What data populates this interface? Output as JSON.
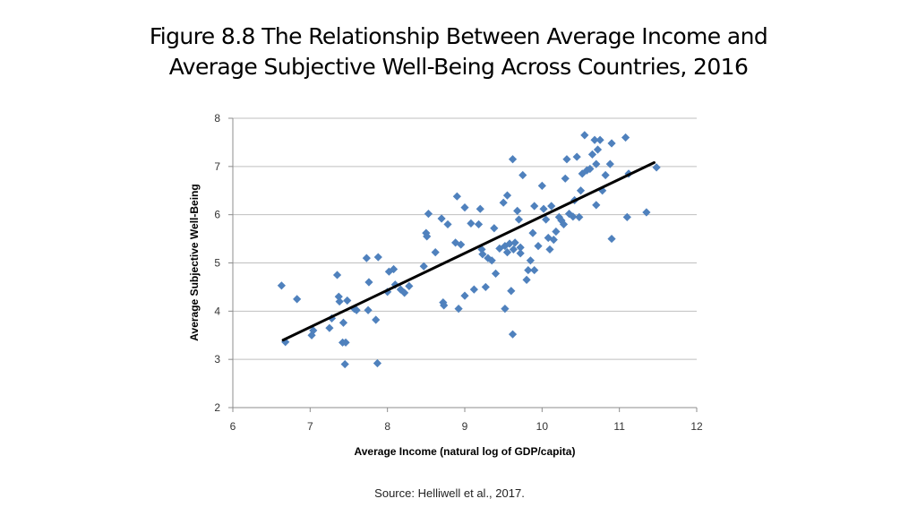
{
  "slide": {
    "title_line1": "Figure 8.8 The Relationship Between Average Income and",
    "title_line2": "Average Subjective Well-Being Across Countries, 2016",
    "source": "Source: Helliwell et al., 2017."
  },
  "chart_data": {
    "type": "scatter",
    "title": "",
    "xlabel": "Average Income (natural log of GDP/capita)",
    "ylabel": "Average Subjective Well-Being",
    "xlim": [
      6,
      12
    ],
    "ylim": [
      2,
      8
    ],
    "xticks": [
      6,
      7,
      8,
      9,
      10,
      11,
      12
    ],
    "yticks": [
      2,
      3,
      4,
      5,
      6,
      7,
      8
    ],
    "grid": "horizontal",
    "legend": "none",
    "marker": "diamond",
    "colors": {
      "points": "#4f81bd",
      "trendline": "#000000",
      "gridline": "#bfbfbf",
      "axis": "#8c8c8c"
    },
    "series": [
      {
        "points": [
          [
            6.63,
            4.53
          ],
          [
            6.68,
            3.36
          ],
          [
            6.83,
            4.25
          ],
          [
            7.02,
            3.5
          ],
          [
            7.04,
            3.6
          ],
          [
            7.25,
            3.65
          ],
          [
            7.28,
            3.85
          ],
          [
            7.35,
            4.75
          ],
          [
            7.37,
            4.3
          ],
          [
            7.38,
            4.2
          ],
          [
            7.42,
            3.35
          ],
          [
            7.43,
            3.76
          ],
          [
            7.45,
            2.9
          ],
          [
            7.46,
            3.35
          ],
          [
            7.48,
            4.22
          ],
          [
            7.57,
            4.05
          ],
          [
            7.6,
            4.02
          ],
          [
            7.73,
            5.1
          ],
          [
            7.76,
            4.6
          ],
          [
            7.75,
            4.02
          ],
          [
            7.85,
            3.82
          ],
          [
            7.87,
            2.92
          ],
          [
            7.88,
            5.12
          ],
          [
            8.0,
            4.4
          ],
          [
            8.02,
            4.82
          ],
          [
            8.08,
            4.87
          ],
          [
            8.1,
            4.55
          ],
          [
            8.17,
            4.45
          ],
          [
            8.22,
            4.38
          ],
          [
            8.28,
            4.52
          ],
          [
            8.47,
            4.93
          ],
          [
            8.5,
            5.62
          ],
          [
            8.51,
            5.55
          ],
          [
            8.53,
            6.02
          ],
          [
            8.62,
            5.22
          ],
          [
            8.7,
            5.92
          ],
          [
            8.72,
            4.18
          ],
          [
            8.73,
            4.12
          ],
          [
            8.78,
            5.8
          ],
          [
            8.88,
            5.42
          ],
          [
            8.9,
            6.38
          ],
          [
            8.92,
            4.05
          ],
          [
            8.95,
            5.38
          ],
          [
            9.0,
            6.15
          ],
          [
            9.0,
            4.32
          ],
          [
            9.08,
            5.82
          ],
          [
            9.12,
            4.45
          ],
          [
            9.18,
            5.8
          ],
          [
            9.2,
            6.12
          ],
          [
            9.22,
            5.28
          ],
          [
            9.23,
            5.18
          ],
          [
            9.27,
            4.5
          ],
          [
            9.3,
            5.1
          ],
          [
            9.35,
            5.05
          ],
          [
            9.38,
            5.72
          ],
          [
            9.4,
            4.78
          ],
          [
            9.45,
            5.3
          ],
          [
            9.5,
            6.25
          ],
          [
            9.52,
            5.35
          ],
          [
            9.52,
            4.05
          ],
          [
            9.55,
            6.4
          ],
          [
            9.55,
            5.22
          ],
          [
            9.58,
            5.4
          ],
          [
            9.6,
            4.42
          ],
          [
            9.62,
            7.15
          ],
          [
            9.62,
            3.52
          ],
          [
            9.63,
            5.28
          ],
          [
            9.65,
            5.42
          ],
          [
            9.68,
            6.08
          ],
          [
            9.7,
            5.9
          ],
          [
            9.72,
            5.2
          ],
          [
            9.72,
            5.32
          ],
          [
            9.75,
            6.82
          ],
          [
            9.8,
            4.65
          ],
          [
            9.82,
            4.85
          ],
          [
            9.85,
            5.05
          ],
          [
            9.88,
            5.62
          ],
          [
            9.9,
            6.18
          ],
          [
            9.9,
            4.85
          ],
          [
            9.95,
            5.35
          ],
          [
            10.0,
            6.6
          ],
          [
            10.02,
            6.12
          ],
          [
            10.05,
            5.9
          ],
          [
            10.08,
            5.52
          ],
          [
            10.1,
            5.28
          ],
          [
            10.12,
            6.18
          ],
          [
            10.15,
            5.48
          ],
          [
            10.18,
            5.65
          ],
          [
            10.22,
            5.95
          ],
          [
            10.25,
            5.88
          ],
          [
            10.28,
            5.8
          ],
          [
            10.3,
            6.75
          ],
          [
            10.32,
            7.15
          ],
          [
            10.35,
            6.02
          ],
          [
            10.4,
            5.96
          ],
          [
            10.42,
            6.3
          ],
          [
            10.45,
            7.2
          ],
          [
            10.48,
            5.95
          ],
          [
            10.5,
            6.5
          ],
          [
            10.52,
            6.85
          ],
          [
            10.55,
            7.65
          ],
          [
            10.58,
            6.92
          ],
          [
            10.62,
            6.95
          ],
          [
            10.65,
            7.25
          ],
          [
            10.68,
            7.55
          ],
          [
            10.7,
            7.05
          ],
          [
            10.7,
            6.2
          ],
          [
            10.72,
            7.35
          ],
          [
            10.75,
            7.55
          ],
          [
            10.78,
            6.5
          ],
          [
            10.82,
            6.82
          ],
          [
            10.88,
            7.05
          ],
          [
            10.9,
            5.5
          ],
          [
            10.9,
            7.48
          ],
          [
            11.08,
            7.6
          ],
          [
            11.1,
            5.95
          ],
          [
            11.12,
            6.85
          ],
          [
            11.35,
            6.05
          ],
          [
            11.48,
            6.98
          ]
        ]
      }
    ],
    "trendline": {
      "x": [
        6.65,
        11.45
      ],
      "y": [
        3.4,
        7.08
      ]
    }
  }
}
